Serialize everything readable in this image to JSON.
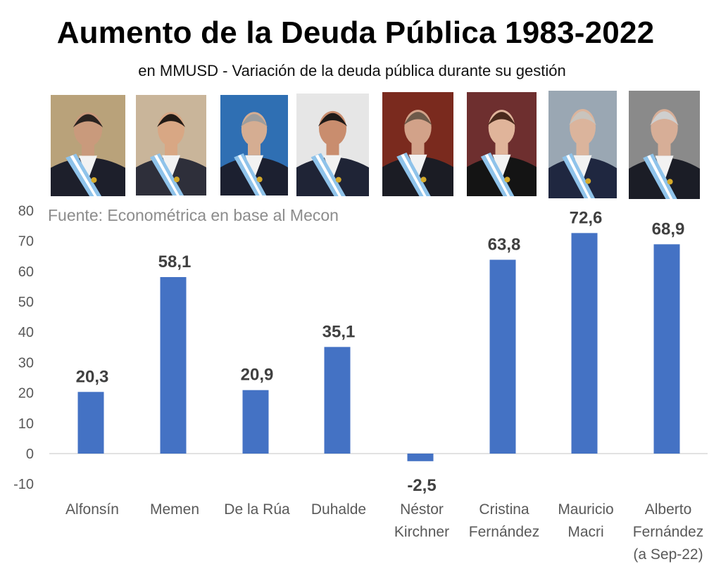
{
  "chart_data": {
    "type": "bar",
    "title": "Aumento de la Deuda Pública 1983-2022",
    "subtitle": "en MMUSD - Variación de la deuda pública durante su gestión",
    "source": "Fuente: Econométrica en base al Mecon",
    "categories": [
      [
        "Alfonsín"
      ],
      [
        "Memen"
      ],
      [
        "De la Rúa"
      ],
      [
        "Duhalde"
      ],
      [
        "Néstor",
        "Kirchner"
      ],
      [
        "Cristina",
        "Fernández"
      ],
      [
        "Mauricio",
        "Macri"
      ],
      [
        "Alberto",
        "Fernández",
        "(a Sep-22)"
      ]
    ],
    "values": [
      20.3,
      58.1,
      20.9,
      35.1,
      -2.5,
      63.8,
      72.6,
      68.9
    ],
    "value_labels": [
      "20,3",
      "58,1",
      "20,9",
      "35,1",
      "-2,5",
      "63,8",
      "72,6",
      "68,9"
    ],
    "ylim": [
      -10,
      80
    ],
    "yticks": [
      -10,
      0,
      10,
      20,
      30,
      40,
      50,
      60,
      70,
      80
    ],
    "xlabel": "",
    "ylabel": "",
    "bar_color": "#4472C4",
    "grid": false
  },
  "portraits": [
    {
      "name": "alfonsin-portrait",
      "bg": "#b9a27a",
      "skin": "#c99a7c",
      "hair": "#2a2320",
      "suit": "#1d1f2b"
    },
    {
      "name": "menem-portrait",
      "bg": "#c9b59a",
      "skin": "#d8a784",
      "hair": "#231b16",
      "suit": "#2e2f3a"
    },
    {
      "name": "delarua-portrait",
      "bg": "#2f6fb3",
      "skin": "#d5ad92",
      "hair": "#9d9d9d",
      "suit": "#1c2030"
    },
    {
      "name": "duhalde-portrait",
      "bg": "#e6e6e6",
      "skin": "#c98d6e",
      "hair": "#1e1a18",
      "suit": "#1f2436"
    },
    {
      "name": "kirchner-portrait",
      "bg": "#7a2a1e",
      "skin": "#d2a289",
      "hair": "#6d5a4a",
      "suit": "#1b1c24"
    },
    {
      "name": "cristina-portrait",
      "bg": "#6e2f2f",
      "skin": "#e0b49a",
      "hair": "#4a2a1c",
      "suit": "#141414"
    },
    {
      "name": "macri-portrait",
      "bg": "#9aa7b3",
      "skin": "#dbb49c",
      "hair": "#c9c4bd",
      "suit": "#1f2740"
    },
    {
      "name": "alberto-portrait",
      "bg": "#8a8a8a",
      "skin": "#d7ae97",
      "hair": "#cfcfcf",
      "suit": "#1b1d26"
    }
  ]
}
